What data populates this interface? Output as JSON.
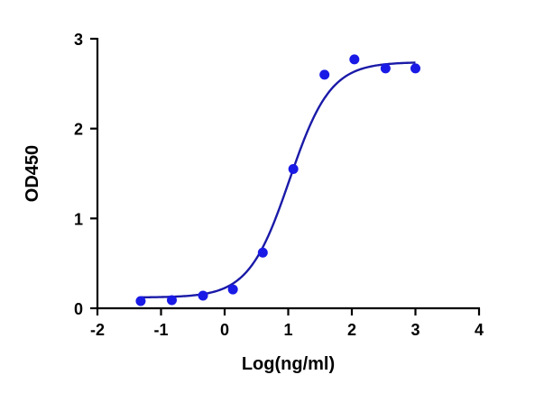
{
  "chart_data": {
    "type": "scatter",
    "title": "",
    "xlabel": "Log(ng/ml)",
    "ylabel": "OD450",
    "xlim": [
      -2,
      4
    ],
    "ylim": [
      0,
      3
    ],
    "xticks": [
      "-2",
      "-1",
      "0",
      "1",
      "2",
      "3",
      "4"
    ],
    "yticks": [
      "0",
      "1",
      "2",
      "3"
    ],
    "grid": false,
    "legend": "none",
    "series": [
      {
        "marker_color": "#1a1ae6",
        "line_color": "#1a1aa8",
        "points": [
          {
            "x": -1.32,
            "y": 0.08
          },
          {
            "x": -0.83,
            "y": 0.09
          },
          {
            "x": -0.34,
            "y": 0.14
          },
          {
            "x": 0.13,
            "y": 0.21
          },
          {
            "x": 0.6,
            "y": 0.62
          },
          {
            "x": 1.08,
            "y": 1.55
          },
          {
            "x": 1.57,
            "y": 2.6
          },
          {
            "x": 2.04,
            "y": 2.77
          },
          {
            "x": 2.53,
            "y": 2.67
          },
          {
            "x": 3.0,
            "y": 2.67
          }
        ],
        "fit": {
          "model": "four-parameter logistic",
          "bottom": 0.12,
          "top": 2.74,
          "log_ec50": 1.02,
          "hill_slope": 1.35,
          "x_range": [
            -1.32,
            3.0
          ]
        }
      }
    ]
  }
}
